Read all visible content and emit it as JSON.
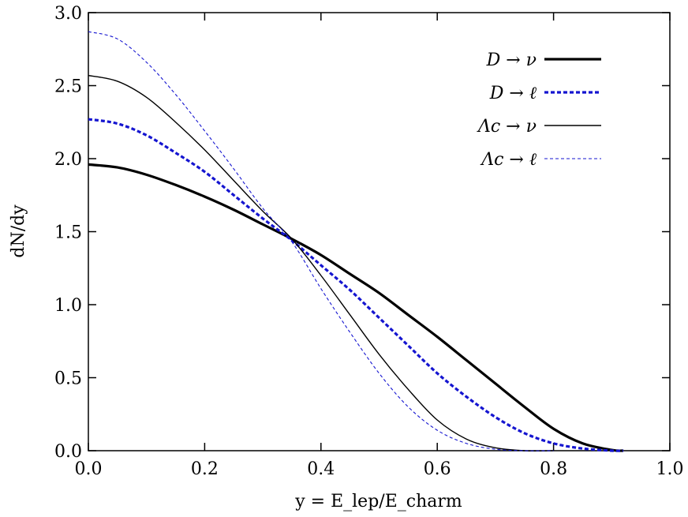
{
  "chart_data": {
    "type": "line",
    "title": "",
    "xlabel": "y = E_lep/E_charm",
    "ylabel": "dN/dy",
    "xlim": [
      0.0,
      1.0
    ],
    "ylim": [
      0.0,
      3.0
    ],
    "x_ticks": [
      "0.0",
      "0.2",
      "0.4",
      "0.6",
      "0.8",
      "1.0"
    ],
    "y_ticks": [
      "0.0",
      "0.5",
      "1.0",
      "1.5",
      "2.0",
      "2.5",
      "3.0"
    ],
    "grid": false,
    "legend_position": "top-right",
    "series": [
      {
        "name": "D → ν",
        "color": "#000000",
        "style": "solid-thick",
        "x": [
          0.0,
          0.05,
          0.1,
          0.15,
          0.2,
          0.25,
          0.3,
          0.35,
          0.4,
          0.45,
          0.5,
          0.55,
          0.6,
          0.65,
          0.7,
          0.75,
          0.8,
          0.85,
          0.9,
          0.92
        ],
        "y": [
          1.96,
          1.94,
          1.89,
          1.82,
          1.74,
          1.65,
          1.55,
          1.45,
          1.34,
          1.21,
          1.08,
          0.93,
          0.78,
          0.62,
          0.46,
          0.3,
          0.15,
          0.05,
          0.005,
          0.0
        ]
      },
      {
        "name": "D → ℓ",
        "color": "#1515d0",
        "style": "dashed-thick",
        "x": [
          0.0,
          0.05,
          0.1,
          0.15,
          0.2,
          0.25,
          0.3,
          0.35,
          0.4,
          0.45,
          0.5,
          0.55,
          0.6,
          0.65,
          0.7,
          0.75,
          0.8,
          0.85,
          0.9,
          0.92
        ],
        "y": [
          2.27,
          2.24,
          2.16,
          2.04,
          1.91,
          1.75,
          1.59,
          1.44,
          1.27,
          1.1,
          0.91,
          0.72,
          0.53,
          0.37,
          0.23,
          0.12,
          0.05,
          0.015,
          0.0,
          0.0
        ]
      },
      {
        "name": "Λc → ν",
        "color": "#000000",
        "style": "solid-thin",
        "x": [
          0.0,
          0.05,
          0.1,
          0.15,
          0.2,
          0.25,
          0.3,
          0.35,
          0.4,
          0.45,
          0.5,
          0.55,
          0.6,
          0.65,
          0.7,
          0.75,
          0.8
        ],
        "y": [
          2.57,
          2.53,
          2.42,
          2.25,
          2.06,
          1.85,
          1.64,
          1.45,
          1.2,
          0.93,
          0.66,
          0.42,
          0.21,
          0.08,
          0.02,
          0.0,
          0.0
        ]
      },
      {
        "name": "Λc → ℓ",
        "color": "#1515d0",
        "style": "dashed-thin",
        "x": [
          0.0,
          0.05,
          0.1,
          0.15,
          0.2,
          0.25,
          0.3,
          0.35,
          0.4,
          0.45,
          0.5,
          0.55,
          0.6,
          0.65,
          0.7,
          0.75,
          0.8
        ],
        "y": [
          2.87,
          2.82,
          2.66,
          2.44,
          2.19,
          1.93,
          1.66,
          1.43,
          1.11,
          0.81,
          0.53,
          0.3,
          0.14,
          0.05,
          0.01,
          0.0,
          0.0
        ]
      }
    ]
  }
}
